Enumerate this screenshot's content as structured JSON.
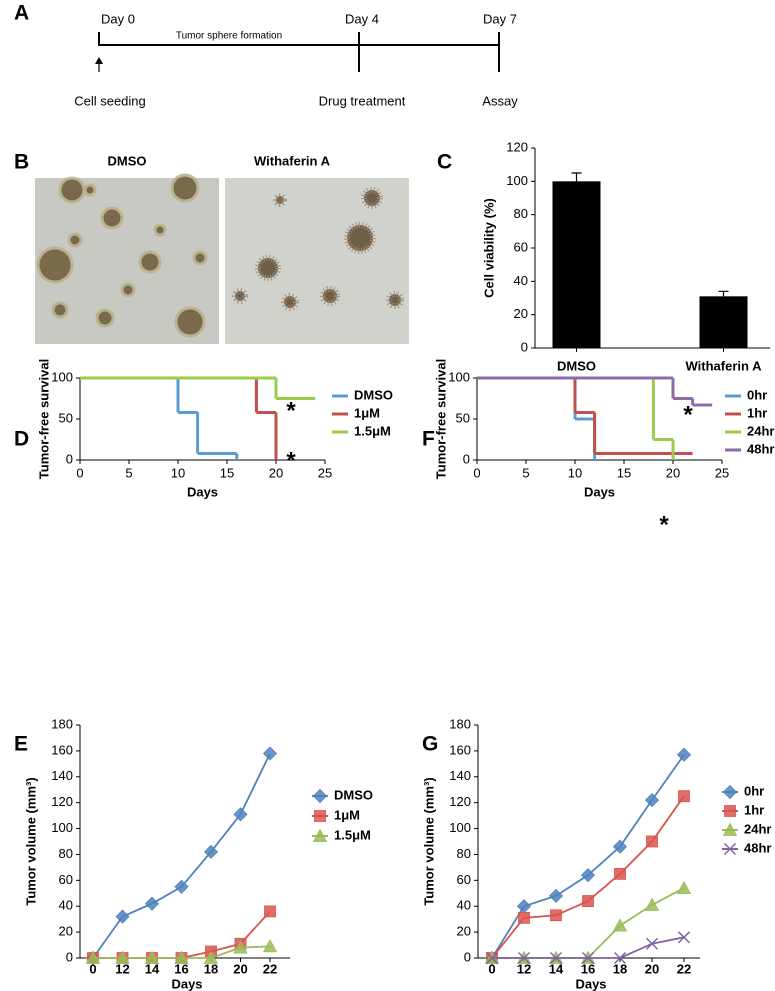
{
  "timeline": {
    "label": "A",
    "period": "Tumor sphere formation",
    "stages": [
      {
        "day": "Day 0",
        "event": "Cell seeding"
      },
      {
        "day": "Day 4",
        "event": "Drug treatment"
      },
      {
        "day": "Day 7",
        "event": "Assay"
      }
    ]
  },
  "micrographs": {
    "label": "B",
    "images": [
      "DMSO",
      "Withaferin A"
    ]
  },
  "chart_data": [
    {
      "type": "bar",
      "panel": "C",
      "ylabel": "Cell viability (%)",
      "categories": [
        "DMSO",
        "Withaferin A"
      ],
      "values": [
        100,
        31
      ],
      "errors": [
        5,
        3
      ],
      "color": "#000000",
      "ylim": [
        0,
        120
      ],
      "yticks": [
        0,
        20,
        40,
        60,
        80,
        100,
        120
      ]
    },
    {
      "type": "step",
      "panel": "D",
      "xlabel": "Days",
      "ylabel": "Tumor-free survival",
      "xlim": [
        0,
        25
      ],
      "xticks": [
        0,
        5,
        10,
        15,
        20,
        25
      ],
      "ylim": [
        0,
        100
      ],
      "yticks": [
        0,
        50,
        100
      ],
      "legend": "right",
      "annotations": [
        "*",
        "*"
      ],
      "series": [
        {
          "name": "DMSO",
          "color": "#5b9bd5",
          "x": [
            0,
            10,
            12,
            16
          ],
          "values": [
            100,
            58,
            8,
            0
          ]
        },
        {
          "name": "1μM",
          "color": "#c0504d",
          "x": [
            0,
            18,
            20
          ],
          "values": [
            100,
            58,
            0
          ]
        },
        {
          "name": "1.5μM",
          "color": "#9bcb4a",
          "x": [
            0,
            20,
            24
          ],
          "values": [
            100,
            75,
            75
          ]
        }
      ]
    },
    {
      "type": "step",
      "panel": "F",
      "xlabel": "Days",
      "ylabel": "Tumor-free survival",
      "xlim": [
        0,
        25
      ],
      "xticks": [
        0,
        5,
        10,
        15,
        20,
        25
      ],
      "ylim": [
        0,
        100
      ],
      "yticks": [
        0,
        50,
        100
      ],
      "legend": "right",
      "annotations": [
        "*",
        "*"
      ],
      "series": [
        {
          "name": "0hr",
          "color": "#5b9bd5",
          "x": [
            0,
            10,
            12
          ],
          "values": [
            100,
            50,
            0
          ]
        },
        {
          "name": "1hr",
          "color": "#c0504d",
          "x": [
            0,
            10,
            12,
            22
          ],
          "values": [
            100,
            58,
            8,
            8
          ]
        },
        {
          "name": "24hr",
          "color": "#9bcb4a",
          "x": [
            0,
            18,
            20
          ],
          "values": [
            100,
            25,
            0
          ]
        },
        {
          "name": "48hr",
          "color": "#8e6ba8",
          "x": [
            0,
            20,
            22,
            24
          ],
          "values": [
            100,
            75,
            67,
            67
          ]
        }
      ]
    },
    {
      "type": "line",
      "panel": "E",
      "xlabel": "Days",
      "ylabel": "Tumor volume (mm³)",
      "categories": [
        0,
        12,
        14,
        16,
        18,
        20,
        22
      ],
      "ylim": [
        0,
        180
      ],
      "yticks": [
        0,
        20,
        40,
        60,
        80,
        100,
        120,
        140,
        160,
        180
      ],
      "legend": "right",
      "series": [
        {
          "name": "DMSO",
          "color": "#4f81bd",
          "marker": "diamond",
          "values": [
            0,
            32,
            42,
            55,
            82,
            111,
            158
          ]
        },
        {
          "name": "1μM",
          "color": "#d9534f",
          "marker": "square",
          "values": [
            0,
            0,
            0,
            0,
            5,
            11,
            36
          ]
        },
        {
          "name": "1.5μM",
          "color": "#9bbb59",
          "marker": "triangle",
          "values": [
            0,
            0,
            0,
            0,
            0,
            8,
            9
          ]
        }
      ]
    },
    {
      "type": "line",
      "panel": "G",
      "xlabel": "Days",
      "ylabel": "Tumor volume (mm³)",
      "categories": [
        0,
        12,
        14,
        16,
        18,
        20,
        22
      ],
      "ylim": [
        0,
        180
      ],
      "yticks": [
        0,
        20,
        40,
        60,
        80,
        100,
        120,
        140,
        160,
        180
      ],
      "legend": "right",
      "series": [
        {
          "name": "0hr",
          "color": "#4f81bd",
          "marker": "diamond",
          "values": [
            0,
            40,
            48,
            64,
            86,
            122,
            157
          ]
        },
        {
          "name": "1hr",
          "color": "#d9534f",
          "marker": "square",
          "values": [
            0,
            31,
            33,
            44,
            65,
            90,
            125
          ]
        },
        {
          "name": "24hr",
          "color": "#9bbb59",
          "marker": "triangle",
          "values": [
            0,
            0,
            0,
            0,
            25,
            41,
            54
          ]
        },
        {
          "name": "48hr",
          "color": "#8064a2",
          "marker": "cross",
          "values": [
            0,
            0,
            0,
            0,
            0,
            11,
            16
          ]
        }
      ]
    }
  ]
}
